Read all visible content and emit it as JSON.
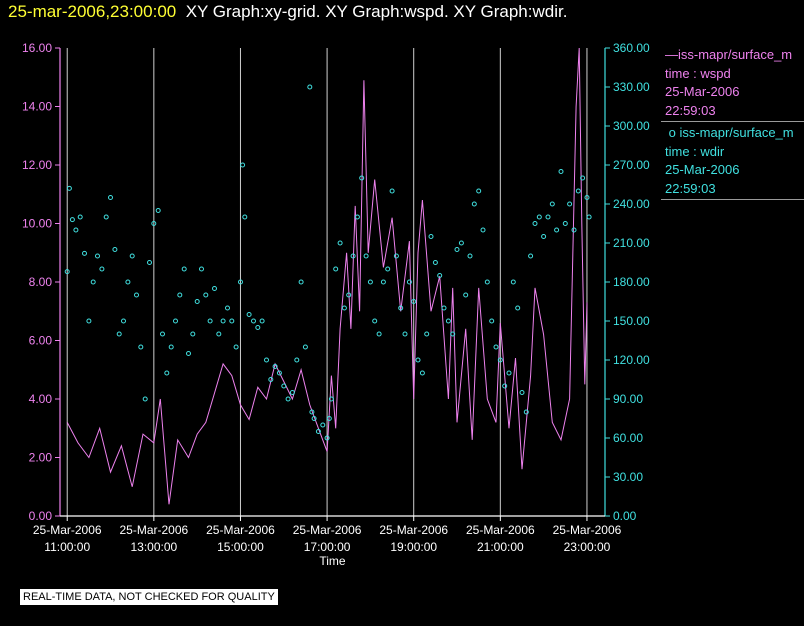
{
  "header": {
    "timestamp": "25-mar-2006,23:00:00",
    "graphs": "XY Graph:xy-grid.  XY Graph:wspd.  XY Graph:wdir."
  },
  "legend": {
    "wspd": {
      "name": "iss-mapr/surface_m",
      "var": "time : wspd",
      "date": "25-Mar-2006",
      "time": "22:59:03"
    },
    "wdir": {
      "name": "iss-mapr/surface_m",
      "var": "time : wdir",
      "date": "25-Mar-2006",
      "time": "22:59:03"
    }
  },
  "footer_note": "REAL-TIME DATA, NOT CHECKED FOR QUALITY",
  "colors": {
    "wspd": "#ee82ee",
    "wdir": "#40e0e0",
    "grid": "#cfcfcf",
    "background": "#000000"
  },
  "chart_data": {
    "type": "scatter",
    "xlabel": "Time",
    "x_range": [
      "2006-03-25 10:50",
      "2006-03-25 23:25"
    ],
    "x_tick_dates": [
      "25-Mar-2006",
      "25-Mar-2006",
      "25-Mar-2006",
      "25-Mar-2006",
      "25-Mar-2006",
      "25-Mar-2006",
      "25-Mar-2006"
    ],
    "x_tick_times": [
      "11:00:00",
      "13:00:00",
      "15:00:00",
      "17:00:00",
      "19:00:00",
      "21:00:00",
      "23:00:00"
    ],
    "x_tick_hours": [
      11,
      13,
      15,
      17,
      19,
      21,
      23
    ],
    "y_left": {
      "label": "",
      "range": [
        0,
        16
      ],
      "ticks": [
        "0.00",
        "2.00",
        "4.00",
        "6.00",
        "8.00",
        "10.00",
        "12.00",
        "14.00",
        "16.00"
      ]
    },
    "y_right": {
      "label": "",
      "range": [
        0,
        360
      ],
      "ticks": [
        "0.00",
        "30.00",
        "60.00",
        "90.00",
        "120.00",
        "150.00",
        "180.00",
        "210.00",
        "240.00",
        "270.00",
        "300.00",
        "330.00",
        "360.00"
      ]
    },
    "grid": "vertical",
    "series": [
      {
        "name": "wspd",
        "axis": "left",
        "style": "line",
        "points": [
          [
            11.0,
            3.2
          ],
          [
            11.25,
            2.5
          ],
          [
            11.5,
            2.0
          ],
          [
            11.75,
            3.0
          ],
          [
            12.0,
            1.5
          ],
          [
            12.25,
            2.4
          ],
          [
            12.5,
            1.0
          ],
          [
            12.75,
            2.8
          ],
          [
            13.0,
            2.5
          ],
          [
            13.15,
            4.0
          ],
          [
            13.35,
            0.4
          ],
          [
            13.55,
            2.6
          ],
          [
            13.8,
            2.0
          ],
          [
            14.0,
            2.8
          ],
          [
            14.2,
            3.2
          ],
          [
            14.4,
            4.2
          ],
          [
            14.6,
            5.2
          ],
          [
            14.8,
            4.8
          ],
          [
            15.0,
            3.8
          ],
          [
            15.2,
            3.3
          ],
          [
            15.4,
            4.4
          ],
          [
            15.6,
            4.0
          ],
          [
            15.8,
            5.2
          ],
          [
            16.0,
            4.6
          ],
          [
            16.2,
            4.0
          ],
          [
            16.4,
            5.0
          ],
          [
            16.6,
            3.8
          ],
          [
            16.8,
            3.0
          ],
          [
            17.0,
            2.2
          ],
          [
            17.1,
            4.8
          ],
          [
            17.2,
            3.0
          ],
          [
            17.3,
            6.4
          ],
          [
            17.45,
            9.0
          ],
          [
            17.55,
            6.4
          ],
          [
            17.65,
            10.6
          ],
          [
            17.75,
            7.0
          ],
          [
            17.85,
            14.9
          ],
          [
            17.95,
            9.0
          ],
          [
            18.1,
            11.5
          ],
          [
            18.3,
            8.5
          ],
          [
            18.5,
            10.2
          ],
          [
            18.7,
            7.0
          ],
          [
            18.9,
            9.4
          ],
          [
            19.0,
            4.0
          ],
          [
            19.1,
            9.0
          ],
          [
            19.2,
            10.8
          ],
          [
            19.4,
            7.0
          ],
          [
            19.6,
            8.2
          ],
          [
            19.8,
            4.0
          ],
          [
            19.9,
            7.8
          ],
          [
            20.0,
            3.2
          ],
          [
            20.2,
            6.4
          ],
          [
            20.35,
            2.6
          ],
          [
            20.5,
            7.8
          ],
          [
            20.7,
            4.0
          ],
          [
            20.9,
            3.2
          ],
          [
            21.0,
            6.6
          ],
          [
            21.2,
            3.0
          ],
          [
            21.35,
            5.4
          ],
          [
            21.5,
            1.6
          ],
          [
            21.7,
            4.8
          ],
          [
            21.8,
            7.8
          ],
          [
            22.0,
            6.2
          ],
          [
            22.2,
            3.2
          ],
          [
            22.4,
            2.6
          ],
          [
            22.6,
            4.0
          ],
          [
            22.75,
            14.0
          ],
          [
            22.82,
            16.0
          ],
          [
            22.88,
            10.0
          ],
          [
            22.95,
            4.5
          ],
          [
            23.0,
            7.3
          ]
        ]
      },
      {
        "name": "wdir",
        "axis": "right",
        "style": "markers",
        "points": [
          [
            11.0,
            188
          ],
          [
            11.05,
            252
          ],
          [
            11.12,
            228
          ],
          [
            11.2,
            220
          ],
          [
            11.3,
            230
          ],
          [
            11.4,
            202
          ],
          [
            11.5,
            150
          ],
          [
            11.6,
            180
          ],
          [
            11.7,
            200
          ],
          [
            11.8,
            190
          ],
          [
            11.9,
            230
          ],
          [
            12.0,
            245
          ],
          [
            12.1,
            205
          ],
          [
            12.2,
            140
          ],
          [
            12.3,
            150
          ],
          [
            12.4,
            180
          ],
          [
            12.5,
            200
          ],
          [
            12.6,
            170
          ],
          [
            12.7,
            130
          ],
          [
            12.8,
            90
          ],
          [
            12.9,
            195
          ],
          [
            13.0,
            225
          ],
          [
            13.1,
            235
          ],
          [
            13.2,
            140
          ],
          [
            13.3,
            110
          ],
          [
            13.4,
            130
          ],
          [
            13.5,
            150
          ],
          [
            13.6,
            170
          ],
          [
            13.7,
            190
          ],
          [
            13.8,
            125
          ],
          [
            13.9,
            140
          ],
          [
            14.0,
            165
          ],
          [
            14.1,
            190
          ],
          [
            14.2,
            170
          ],
          [
            14.3,
            150
          ],
          [
            14.4,
            175
          ],
          [
            14.5,
            140
          ],
          [
            14.6,
            150
          ],
          [
            14.7,
            160
          ],
          [
            14.8,
            150
          ],
          [
            14.9,
            130
          ],
          [
            15.0,
            180
          ],
          [
            15.05,
            270
          ],
          [
            15.1,
            230
          ],
          [
            15.2,
            155
          ],
          [
            15.3,
            150
          ],
          [
            15.4,
            145
          ],
          [
            15.5,
            150
          ],
          [
            15.6,
            120
          ],
          [
            15.7,
            105
          ],
          [
            15.8,
            115
          ],
          [
            15.9,
            110
          ],
          [
            16.0,
            100
          ],
          [
            16.1,
            90
          ],
          [
            16.2,
            95
          ],
          [
            16.3,
            120
          ],
          [
            16.4,
            180
          ],
          [
            16.5,
            130
          ],
          [
            16.6,
            330
          ],
          [
            16.65,
            80
          ],
          [
            16.7,
            75
          ],
          [
            16.8,
            65
          ],
          [
            16.9,
            70
          ],
          [
            17.0,
            60
          ],
          [
            17.05,
            75
          ],
          [
            17.1,
            90
          ],
          [
            17.2,
            190
          ],
          [
            17.3,
            210
          ],
          [
            17.4,
            160
          ],
          [
            17.5,
            170
          ],
          [
            17.6,
            200
          ],
          [
            17.7,
            230
          ],
          [
            17.8,
            260
          ],
          [
            17.9,
            200
          ],
          [
            18.0,
            180
          ],
          [
            18.1,
            150
          ],
          [
            18.2,
            140
          ],
          [
            18.3,
            180
          ],
          [
            18.4,
            190
          ],
          [
            18.5,
            250
          ],
          [
            18.6,
            200
          ],
          [
            18.7,
            160
          ],
          [
            18.8,
            140
          ],
          [
            18.9,
            180
          ],
          [
            19.0,
            165
          ],
          [
            19.1,
            120
          ],
          [
            19.2,
            110
          ],
          [
            19.3,
            140
          ],
          [
            19.4,
            215
          ],
          [
            19.5,
            195
          ],
          [
            19.6,
            185
          ],
          [
            19.7,
            160
          ],
          [
            19.8,
            150
          ],
          [
            19.9,
            140
          ],
          [
            20.0,
            205
          ],
          [
            20.1,
            210
          ],
          [
            20.2,
            170
          ],
          [
            20.3,
            200
          ],
          [
            20.4,
            240
          ],
          [
            20.5,
            250
          ],
          [
            20.6,
            220
          ],
          [
            20.7,
            180
          ],
          [
            20.8,
            150
          ],
          [
            20.9,
            130
          ],
          [
            21.0,
            120
          ],
          [
            21.1,
            100
          ],
          [
            21.2,
            110
          ],
          [
            21.3,
            180
          ],
          [
            21.4,
            160
          ],
          [
            21.5,
            95
          ],
          [
            21.6,
            80
          ],
          [
            21.7,
            200
          ],
          [
            21.8,
            225
          ],
          [
            21.9,
            230
          ],
          [
            22.0,
            215
          ],
          [
            22.1,
            230
          ],
          [
            22.2,
            240
          ],
          [
            22.3,
            220
          ],
          [
            22.4,
            265
          ],
          [
            22.5,
            225
          ],
          [
            22.6,
            240
          ],
          [
            22.7,
            220
          ],
          [
            22.8,
            250
          ],
          [
            22.9,
            260
          ],
          [
            23.0,
            245
          ],
          [
            23.05,
            230
          ]
        ]
      }
    ]
  }
}
